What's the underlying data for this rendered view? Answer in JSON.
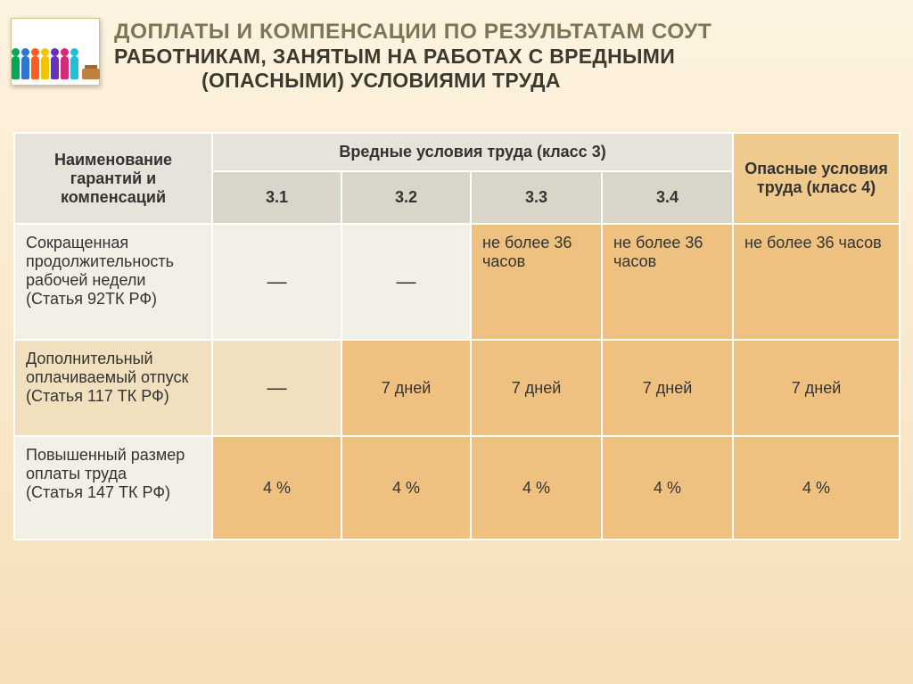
{
  "title": {
    "line1": "ДОПЛАТЫ  И КОМПЕНСАЦИИ ПО РЕЗУЛЬТАТАМ СОУТ",
    "line2": "РАБОТНИКАМ, ЗАНЯТЫМ НА РАБОТАХ С ВРЕДНЫМИ",
    "line3": "(ОПАСНЫМИ) УСЛОВИЯМИ ТРУДА"
  },
  "icon": {
    "figurine_colors": [
      "#00a859",
      "#2e77d0",
      "#ff5a1f",
      "#f5c400",
      "#6a2fbf",
      "#d42a7b",
      "#20c1d6"
    ]
  },
  "table": {
    "type": "table",
    "header": {
      "name": "Наименование гарантий и компенсаций",
      "class3": "Вредные условия труда (класс 3)",
      "class4": "Опасные условия труда (класс 4)",
      "sub": [
        "3.1",
        "3.2",
        "3.3",
        "3.4"
      ]
    },
    "rows": [
      {
        "label": "Сокращенная продолжительность рабочей недели (Статья 92ТК РФ)",
        "cells": [
          "—",
          "—",
          "не более 36 часов",
          "не более 36 часов",
          "не более 36 часов"
        ]
      },
      {
        "label": "Дополнительный оплачиваемый отпуск (Статья 117 ТК РФ)",
        "cells": [
          "—",
          "7 дней",
          "7 дней",
          "7 дней",
          "7 дней"
        ]
      },
      {
        "label": "Повышенный  размер оплаты труда\n(Статья 147 ТК РФ)",
        "cells": [
          "4 %",
          "4 %",
          "4 %",
          "4 %",
          "4 %"
        ]
      }
    ],
    "colors": {
      "bg_gradient_top": "#fdf3e0",
      "bg_gradient_bottom": "#f5dfb8",
      "header_light": "#e6e3da",
      "header_sub": "#d9d5c9",
      "header_orange": "#f0ca8c",
      "cell_light": "#f2efe6",
      "cell_tint": "#f0e0be",
      "cell_orange": "#efc181",
      "border": "#ffffff"
    },
    "font": {
      "body_size": 18,
      "title_size": 24,
      "family": "Arial"
    }
  }
}
